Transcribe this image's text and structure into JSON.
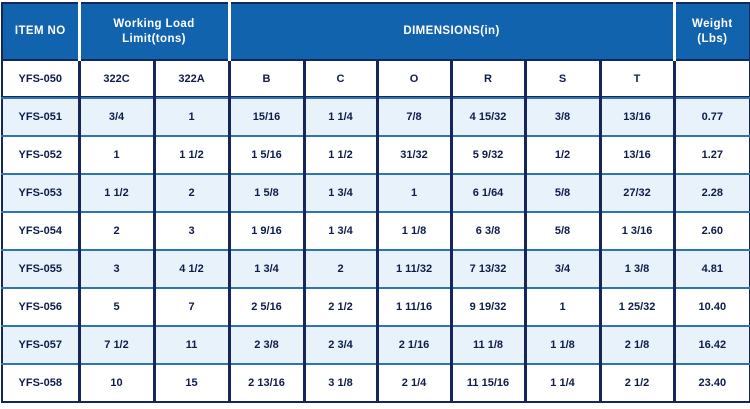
{
  "table": {
    "header": {
      "item_no": "ITEM NO",
      "working_load_line1": "Working Load",
      "working_load_line2": "Limit(tons)",
      "dimensions": "DIMENSIONS(in)",
      "weight_line1": "Weight",
      "weight_line2": "(Lbs)"
    },
    "subheader": [
      "YFS-050",
      "322C",
      "322A",
      "B",
      "C",
      "O",
      "R",
      "S",
      "T",
      ""
    ],
    "rows": [
      [
        "YFS-051",
        "3/4",
        "1",
        "15/16",
        "1 1/4",
        "7/8",
        "4 15/32",
        "3/8",
        "13/16",
        "0.77"
      ],
      [
        "YFS-052",
        "1",
        "1 1/2",
        "1 5/16",
        "1 1/2",
        "31/32",
        "5 9/32",
        "1/2",
        "13/16",
        "1.27"
      ],
      [
        "YFS-053",
        "1 1/2",
        "2",
        "1 5/8",
        "1 3/4",
        "1",
        "6 1/64",
        "5/8",
        "27/32",
        "2.28"
      ],
      [
        "YFS-054",
        "2",
        "3",
        "1 9/16",
        "1 3/4",
        "1 1/8",
        "6 3/8",
        "5/8",
        "1 3/16",
        "2.60"
      ],
      [
        "YFS-055",
        "3",
        "4 1/2",
        "1 3/4",
        "2",
        "1 11/32",
        "7 13/32",
        "3/4",
        "1 3/8",
        "4.81"
      ],
      [
        "YFS-056",
        "5",
        "7",
        "2 5/16",
        "2 1/2",
        "1 11/16",
        "9 19/32",
        "1",
        "1 25/32",
        "10.40"
      ],
      [
        "YFS-057",
        "7 1/2",
        "11",
        "2 3/8",
        "2 3/4",
        "2 1/16",
        "11 1/8",
        "1 1/8",
        "2 1/8",
        "16.42"
      ],
      [
        "YFS-058",
        "10",
        "15",
        "2 13/16",
        "3 1/8",
        "2 1/4",
        "11 15/16",
        "1 1/4",
        "2 1/2",
        "23.40"
      ]
    ],
    "colors": {
      "header_bg": "#1263ae",
      "row_alt_bg": "#e8f2fb",
      "border_dark": "#15265c",
      "border_light": "#2e74b5",
      "text": "#0e1c4a"
    }
  },
  "chart_data": {
    "type": "table",
    "title": "Shackle specification table",
    "column_groups": [
      "ITEM NO",
      "Working Load Limit(tons)",
      "DIMENSIONS(in)",
      "Weight (Lbs)"
    ],
    "columns": [
      "ITEM NO",
      "322C",
      "322A",
      "B",
      "C",
      "O",
      "R",
      "S",
      "T",
      "Weight (Lbs)"
    ],
    "rows": [
      [
        "YFS-050",
        "322C",
        "322A",
        "B",
        "C",
        "O",
        "R",
        "S",
        "T",
        ""
      ],
      [
        "YFS-051",
        "3/4",
        "1",
        "15/16",
        "1 1/4",
        "7/8",
        "4 15/32",
        "3/8",
        "13/16",
        "0.77"
      ],
      [
        "YFS-052",
        "1",
        "1 1/2",
        "1 5/16",
        "1 1/2",
        "31/32",
        "5 9/32",
        "1/2",
        "13/16",
        "1.27"
      ],
      [
        "YFS-053",
        "1 1/2",
        "2",
        "1 5/8",
        "1 3/4",
        "1",
        "6 1/64",
        "5/8",
        "27/32",
        "2.28"
      ],
      [
        "YFS-054",
        "2",
        "3",
        "1 9/16",
        "1 3/4",
        "1 1/8",
        "6 3/8",
        "5/8",
        "1 3/16",
        "2.60"
      ],
      [
        "YFS-055",
        "3",
        "4 1/2",
        "1 3/4",
        "2",
        "1 11/32",
        "7 13/32",
        "3/4",
        "1 3/8",
        "4.81"
      ],
      [
        "YFS-056",
        "5",
        "7",
        "2 5/16",
        "2 1/2",
        "1 11/16",
        "9 19/32",
        "1",
        "1 25/32",
        "10.40"
      ],
      [
        "YFS-057",
        "7 1/2",
        "11",
        "2 3/8",
        "2 3/4",
        "2 1/16",
        "11 1/8",
        "1 1/8",
        "2 1/8",
        "16.42"
      ],
      [
        "YFS-058",
        "10",
        "15",
        "2 13/16",
        "3 1/8",
        "2 1/4",
        "11 15/16",
        "1 1/4",
        "2 1/2",
        "23.40"
      ]
    ],
    "weights_lbs": [
      0.77,
      1.27,
      2.28,
      2.6,
      4.81,
      10.4,
      16.42,
      23.4
    ]
  }
}
